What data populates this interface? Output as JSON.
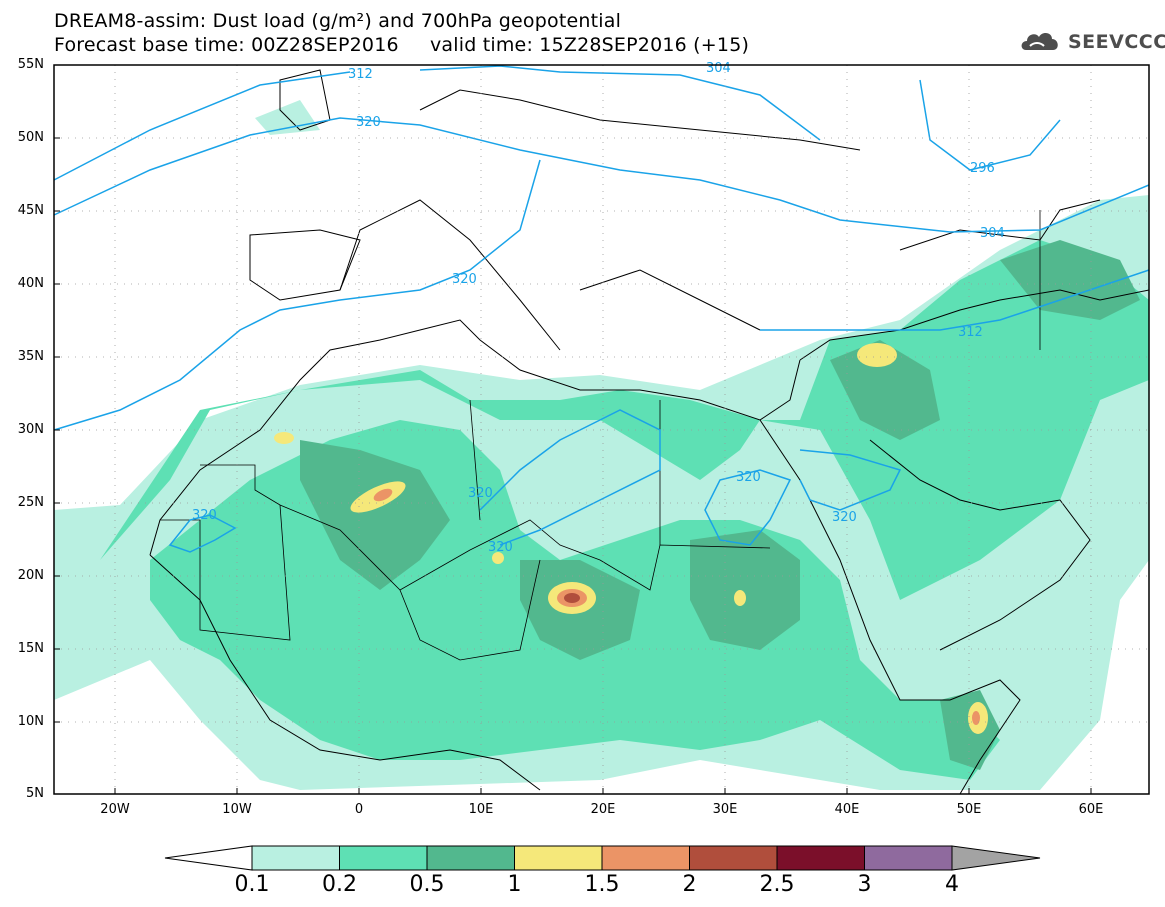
{
  "title": {
    "line1": "DREAM8-assim: Dust load (g/m²) and 700hPa geopotential",
    "line2": "Forecast base time: 00Z28SEP2016     valid time: 15Z28SEP2016 (+15)"
  },
  "logo": {
    "text": "SEEVCCC",
    "icon": "cloud-icon"
  },
  "lat_labels": [
    "55N",
    "50N",
    "45N",
    "40N",
    "35N",
    "30N",
    "25N",
    "20N",
    "15N",
    "10N",
    "5N"
  ],
  "lon_labels": [
    "20W",
    "10W",
    "0",
    "10E",
    "20E",
    "30E",
    "40E",
    "50E",
    "60E"
  ],
  "contour_labels": [
    "312",
    "304",
    "320",
    "320",
    "296",
    "304",
    "312",
    "320",
    "320",
    "320",
    "320",
    "320"
  ],
  "colorbar": {
    "labels": [
      "0.1",
      "0.2",
      "0.5",
      "1",
      "1.5",
      "2",
      "2.5",
      "3",
      "4"
    ],
    "colors": [
      "#b9f0e1",
      "#5ee0b4",
      "#52b88e",
      "#f5e87a",
      "#eb9466",
      "#b04e3c",
      "#7b0f2a",
      "#8f6a9e"
    ],
    "over_color": "#a3a3a3",
    "under_color": "#ffffff"
  },
  "contour_color": "#1aa3e8"
}
